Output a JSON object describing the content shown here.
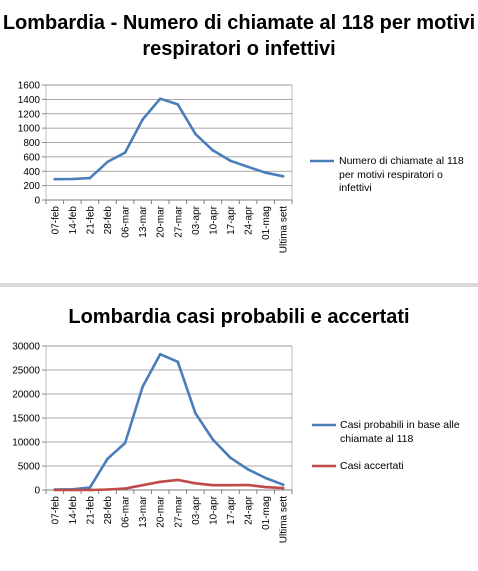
{
  "chart_data": [
    {
      "type": "line",
      "title": "Lombardia - Numero di chiamate al 118 per motivi respiratori o infettivi",
      "categories": [
        "07-feb",
        "14-feb",
        "21-feb",
        "28-feb",
        "06-mar",
        "13-mar",
        "20-mar",
        "27-mar",
        "03-apr",
        "10-apr",
        "17-apr",
        "24-apr",
        "01-mag",
        "Ultima sett"
      ],
      "yticks": [
        "0",
        "200",
        "400",
        "600",
        "800",
        "1000",
        "1200",
        "1400",
        "1600"
      ],
      "ylim": [
        0,
        1600
      ],
      "grid": true,
      "legend_position": "right",
      "series": [
        {
          "name": "Numero di chiamate al 118 per motivi respiratori o infettivi",
          "color": "#4a7ebb",
          "values": [
            290,
            292,
            305,
            530,
            660,
            1120,
            1410,
            1330,
            920,
            690,
            545,
            460,
            380,
            330
          ]
        }
      ]
    },
    {
      "type": "line",
      "title": "Lombardia casi probabili e accertati",
      "categories": [
        "07-feb",
        "14-feb",
        "21-feb",
        "28-feb",
        "06-mar",
        "13-mar",
        "20-mar",
        "27-mar",
        "03-apr",
        "10-apr",
        "17-apr",
        "24-apr",
        "01-mag",
        "Ultima sett"
      ],
      "yticks": [
        "0",
        "5000",
        "10000",
        "15000",
        "20000",
        "25000",
        "30000"
      ],
      "ylim": [
        0,
        30000
      ],
      "grid": true,
      "legend_position": "right",
      "series": [
        {
          "name": "Casi probabili in base alle chiamate al 118",
          "color": "#4a7ebb",
          "values": [
            100,
            150,
            500,
            6500,
            9800,
            21500,
            28300,
            26700,
            16000,
            10500,
            6700,
            4300,
            2500,
            1100
          ]
        },
        {
          "name": "Casi accertati",
          "color": "#be4b48",
          "values": [
            0,
            0,
            0,
            100,
            300,
            1000,
            1700,
            2100,
            1400,
            1000,
            1000,
            1050,
            600,
            400
          ]
        }
      ]
    }
  ]
}
